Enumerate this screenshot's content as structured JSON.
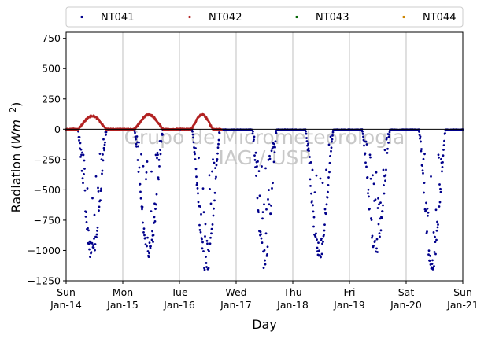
{
  "chart_data": {
    "type": "scatter",
    "title": "",
    "xlabel": "Day",
    "ylabel_main": "Radiation (",
    "ylabel_unit": "Wm",
    "ylabel_exp": "−2",
    "ylabel_close": ")",
    "ylim": [
      -1250,
      800
    ],
    "xlim_days": [
      0,
      7
    ],
    "yticks": [
      -1250,
      -1000,
      -750,
      -500,
      -250,
      0,
      250,
      500,
      750
    ],
    "xticks": [
      {
        "day": 0,
        "line1": "Sun",
        "line2": "Jan-14"
      },
      {
        "day": 1,
        "line1": "Mon",
        "line2": "Jan-15"
      },
      {
        "day": 2,
        "line1": "Tue",
        "line2": "Jan-16"
      },
      {
        "day": 3,
        "line1": "Wed",
        "line2": "Jan-17"
      },
      {
        "day": 4,
        "line1": "Thu",
        "line2": "Jan-18"
      },
      {
        "day": 5,
        "line1": "Fri",
        "line2": "Jan-19"
      },
      {
        "day": 6,
        "line1": "Sat",
        "line2": "Jan-20"
      },
      {
        "day": 7,
        "line1": "Sun",
        "line2": "Jan-21"
      }
    ],
    "grid": "vertical",
    "legend_position": "top",
    "watermark": [
      "Grupo de Micrometeorologia",
      "IAG / USP"
    ],
    "series": [
      {
        "name": "NT041",
        "color": "#00008b",
        "envelope": [
          {
            "day": 0,
            "sunrise": 0.2,
            "sunset": 0.72,
            "peak": -1090
          },
          {
            "day": 1,
            "sunrise": 1.2,
            "sunset": 1.72,
            "peak": -1080
          },
          {
            "day": 2,
            "sunrise": 2.22,
            "sunset": 2.72,
            "peak": -1210
          },
          {
            "day": 3,
            "sunrise": 3.28,
            "sunset": 3.72,
            "peak": -1170
          },
          {
            "day": 4,
            "sunrise": 4.22,
            "sunset": 4.72,
            "peak": -1100
          },
          {
            "day": 5,
            "sunrise": 5.22,
            "sunset": 5.72,
            "peak": -1060
          },
          {
            "day": 6,
            "sunrise": 6.22,
            "sunset": 6.7,
            "peak": -1200
          }
        ]
      },
      {
        "name": "NT042",
        "color": "#b22222",
        "envelope": [
          {
            "day": 0,
            "sunrise": 0.2,
            "sunset": 0.72,
            "peak": 110
          },
          {
            "day": 1,
            "sunrise": 1.2,
            "sunset": 1.72,
            "peak": 120
          },
          {
            "day": 2,
            "sunrise": 2.2,
            "sunset": 2.6,
            "peak": 120
          }
        ]
      },
      {
        "name": "NT043",
        "color": "#006400",
        "envelope": []
      },
      {
        "name": "NT044",
        "color": "#cc8400",
        "envelope": []
      }
    ]
  }
}
